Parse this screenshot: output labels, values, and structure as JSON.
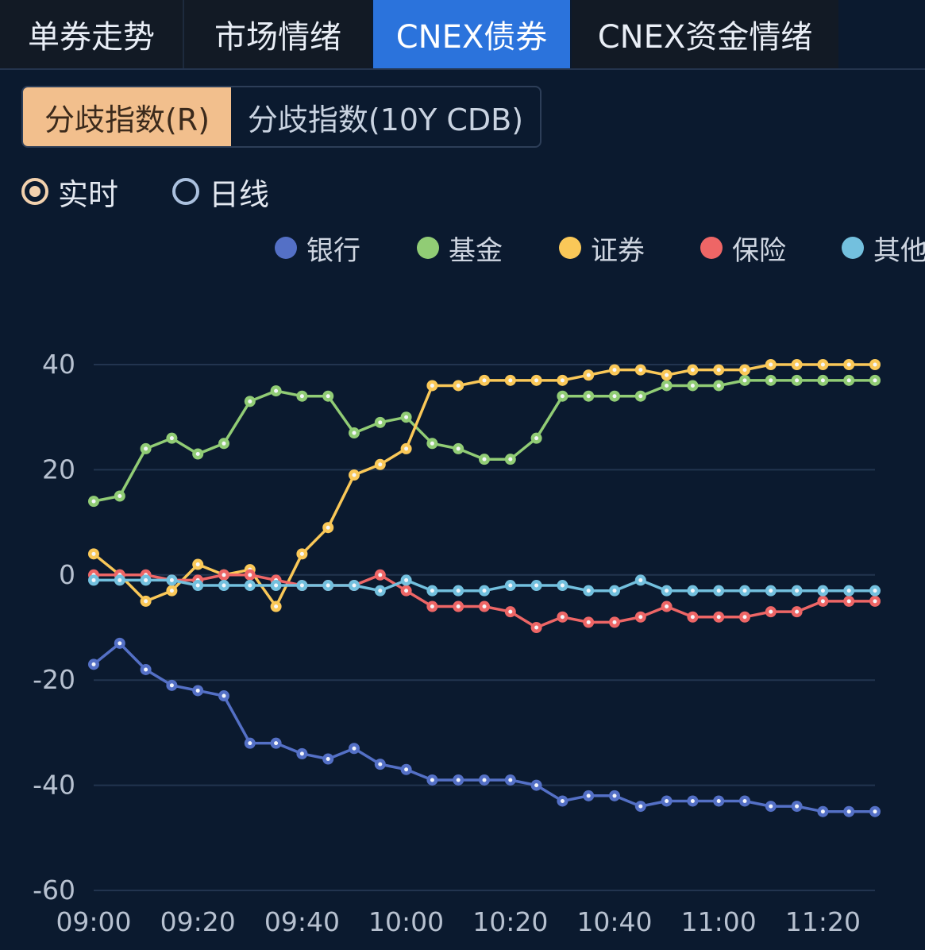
{
  "tabs": [
    {
      "label": "单券走势",
      "active": false
    },
    {
      "label": "市场情绪",
      "active": false
    },
    {
      "label": "CNEX债券",
      "active": true
    },
    {
      "label": "CNEX资金情绪",
      "active": false
    }
  ],
  "segments": [
    {
      "label": "分歧指数(R)",
      "active": true
    },
    {
      "label": "分歧指数(10Y CDB)",
      "active": false
    }
  ],
  "radios": [
    {
      "label": "实时",
      "checked": true
    },
    {
      "label": "日线",
      "checked": false
    }
  ],
  "colors": {
    "background": "#0b1a2f",
    "active_tab": "#2b73dc",
    "active_segment": "#f2bf8d"
  },
  "chart_data": {
    "type": "line",
    "x": [
      "09:00",
      "09:05",
      "09:10",
      "09:15",
      "09:20",
      "09:25",
      "09:30",
      "09:35",
      "09:40",
      "09:45",
      "09:50",
      "09:55",
      "10:00",
      "10:05",
      "10:10",
      "10:15",
      "10:20",
      "10:25",
      "10:30",
      "10:35",
      "10:40",
      "10:45",
      "10:50",
      "10:55",
      "11:00",
      "11:05",
      "11:10",
      "11:15",
      "11:20",
      "11:25",
      "11:30"
    ],
    "x_tick_labels": [
      "09:00",
      "09:20",
      "09:40",
      "10:00",
      "10:20",
      "10:40",
      "11:00",
      "11:20"
    ],
    "y_ticks": [
      40,
      20,
      0,
      -20,
      -40,
      -60
    ],
    "ylim": [
      -60,
      40
    ],
    "grid": true,
    "legend_position": "top-right",
    "series": [
      {
        "name": "银行",
        "color": "#5470c6",
        "values": [
          -17,
          -13,
          -18,
          -21,
          -22,
          -23,
          -32,
          -32,
          -34,
          -35,
          -33,
          -36,
          -37,
          -39,
          -39,
          -39,
          -39,
          -40,
          -43,
          -42,
          -42,
          -44,
          -43,
          -43,
          -43,
          -43,
          -44,
          -44,
          -45,
          -45,
          -45
        ]
      },
      {
        "name": "基金",
        "color": "#91cc75",
        "values": [
          14,
          15,
          24,
          26,
          23,
          25,
          33,
          35,
          34,
          34,
          27,
          29,
          30,
          25,
          24,
          22,
          22,
          26,
          34,
          34,
          34,
          34,
          36,
          36,
          36,
          37,
          37,
          37,
          37,
          37,
          37
        ]
      },
      {
        "name": "证券",
        "color": "#fac858",
        "values": [
          4,
          0,
          -5,
          -3,
          2,
          0,
          1,
          -6,
          4,
          9,
          19,
          21,
          24,
          36,
          36,
          37,
          37,
          37,
          37,
          38,
          39,
          39,
          38,
          39,
          39,
          39,
          40,
          40,
          40,
          40,
          40
        ]
      },
      {
        "name": "保险",
        "color": "#ee6666",
        "values": [
          0,
          0,
          0,
          -1,
          -1,
          0,
          0,
          -1,
          -2,
          -2,
          -2,
          0,
          -3,
          -6,
          -6,
          -6,
          -7,
          -10,
          -8,
          -9,
          -9,
          -8,
          -6,
          -8,
          -8,
          -8,
          -7,
          -7,
          -5,
          -5,
          -5
        ]
      },
      {
        "name": "其他",
        "color": "#73c0de",
        "values": [
          -1,
          -1,
          -1,
          -1,
          -2,
          -2,
          -2,
          -2,
          -2,
          -2,
          -2,
          -3,
          -1,
          -3,
          -3,
          -3,
          -2,
          -2,
          -2,
          -3,
          -3,
          -1,
          -3,
          -3,
          -3,
          -3,
          -3,
          -3,
          -3,
          -3,
          -3
        ]
      }
    ]
  }
}
